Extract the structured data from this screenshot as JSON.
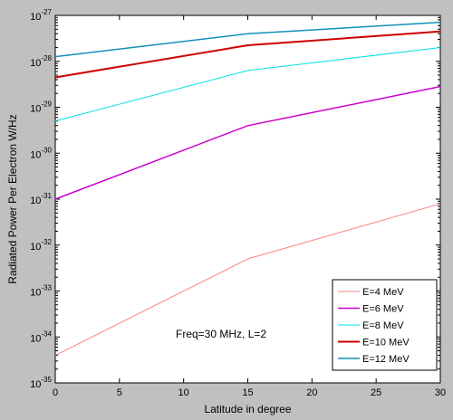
{
  "chart_data": {
    "type": "line",
    "title": "",
    "xlabel": "Latitude in degree",
    "ylabel": "Radiated Power Per Electron W/Hz",
    "xlim": [
      0,
      30
    ],
    "ylim_exponent": [
      -35,
      -27
    ],
    "y_scale": "log",
    "grid": false,
    "x_ticks": [
      0,
      5,
      10,
      15,
      20,
      25,
      30
    ],
    "y_tick_exponents": [
      -35,
      -34,
      -33,
      -32,
      -31,
      -30,
      -29,
      -28,
      -27
    ],
    "y_tick_base": "10",
    "annotation": "Freq=30 MHz, L=2",
    "legend_position": "bottom-right",
    "series": [
      {
        "name": "E=4 MeV",
        "color": "#ff8080",
        "stroke": 1,
        "x": [
          0,
          15,
          30
        ],
        "y_exponent": [
          -34.4,
          -32.3,
          -31.1
        ]
      },
      {
        "name": "E=6 MeV",
        "color": "#cc00cc",
        "stroke": 1.5,
        "x": [
          0,
          15,
          30
        ],
        "y_exponent": [
          -31.0,
          -29.4,
          -28.55
        ]
      },
      {
        "name": "E=8 MeV",
        "color": "#00e0e0",
        "stroke": 1,
        "x": [
          0,
          15,
          30
        ],
        "y_exponent": [
          -29.3,
          -28.2,
          -27.7
        ]
      },
      {
        "name": "E=10 MeV",
        "color": "#cc0000",
        "stroke": 2,
        "x": [
          0,
          15,
          30
        ],
        "y_exponent": [
          -28.35,
          -27.65,
          -27.35
        ]
      },
      {
        "name": "E=12 MeV",
        "color": "#1090b8",
        "stroke": 1.5,
        "x": [
          0,
          15,
          30
        ],
        "y_exponent": [
          -27.9,
          -27.4,
          -27.15
        ]
      }
    ]
  }
}
